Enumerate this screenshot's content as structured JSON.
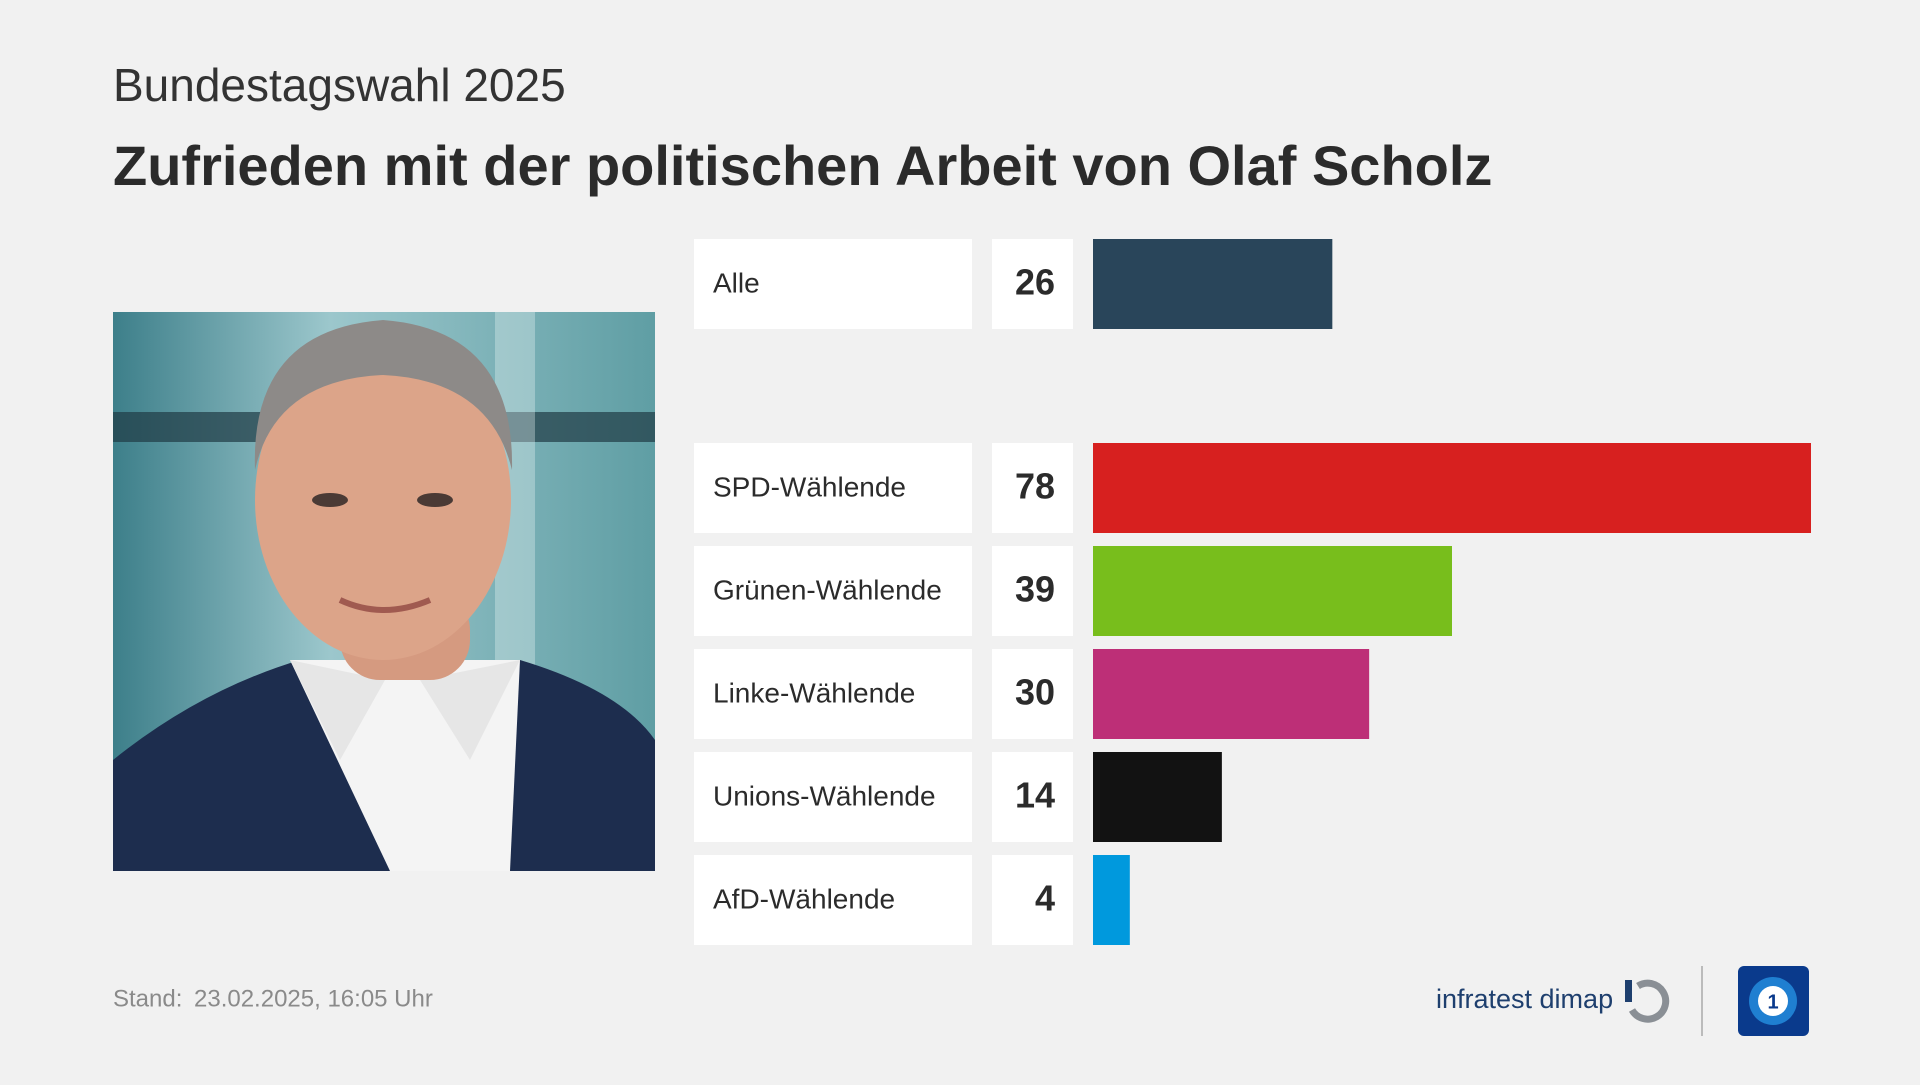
{
  "chart_data": {
    "type": "bar",
    "orientation": "horizontal",
    "subtitle": "Bundestagswahl 2025",
    "title": "Zufrieden mit der politischen Arbeit von Olaf Scholz",
    "categories": [
      "Alle",
      "SPD-Wählende",
      "Grünen-Wählende",
      "Linke-Wählende",
      "Unions-Wählende",
      "AfD-Wählende"
    ],
    "values": [
      26,
      78,
      39,
      30,
      14,
      4
    ],
    "colors": [
      "#29455a",
      "#d7201f",
      "#78be1c",
      "#bd2f77",
      "#121212",
      "#0099dd"
    ],
    "stand_label": "Stand:",
    "stand_date": "23.02.2025, 16:05 Uhr",
    "source": "infratest dimap"
  }
}
